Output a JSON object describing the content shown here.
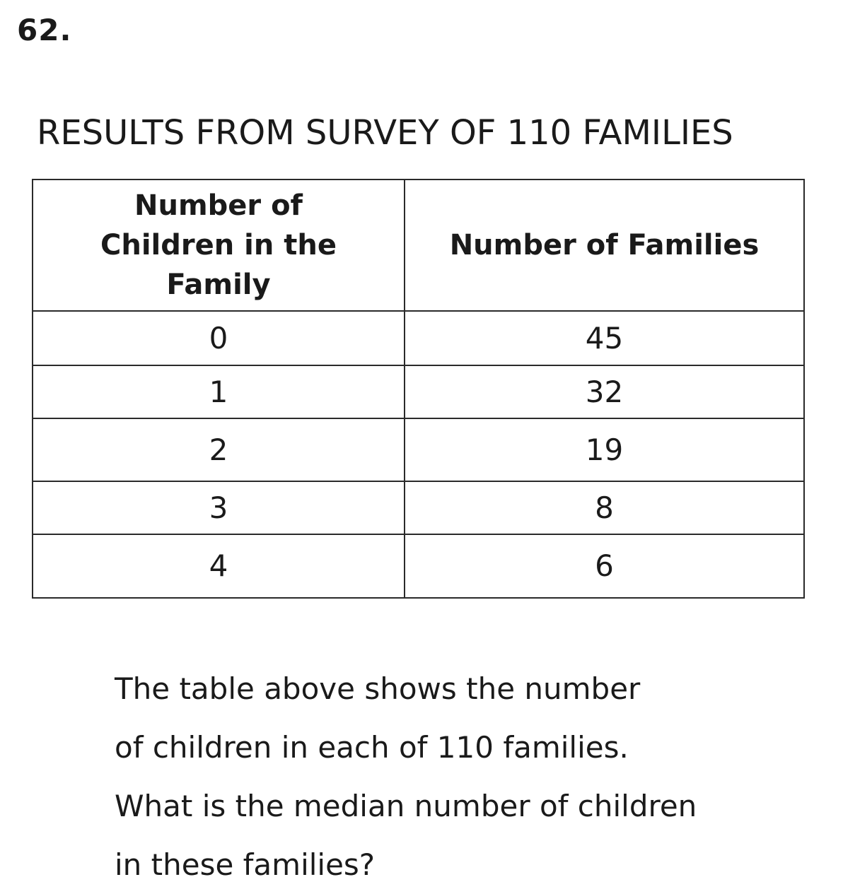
{
  "question_number": "62.",
  "title": "RESULTS FROM SURVEY OF 110 FAMILIES",
  "table": {
    "headers": [
      "Number of Children in the Family",
      "Number of Families"
    ],
    "rows": [
      [
        "0",
        "45"
      ],
      [
        "1",
        "32"
      ],
      [
        "2",
        "19"
      ],
      [
        "3",
        "8"
      ],
      [
        "4",
        "6"
      ]
    ]
  },
  "question_lines": [
    "The table above shows the number",
    "of children in each of 110 families.",
    "What is the median number of children",
    "in these families?"
  ]
}
